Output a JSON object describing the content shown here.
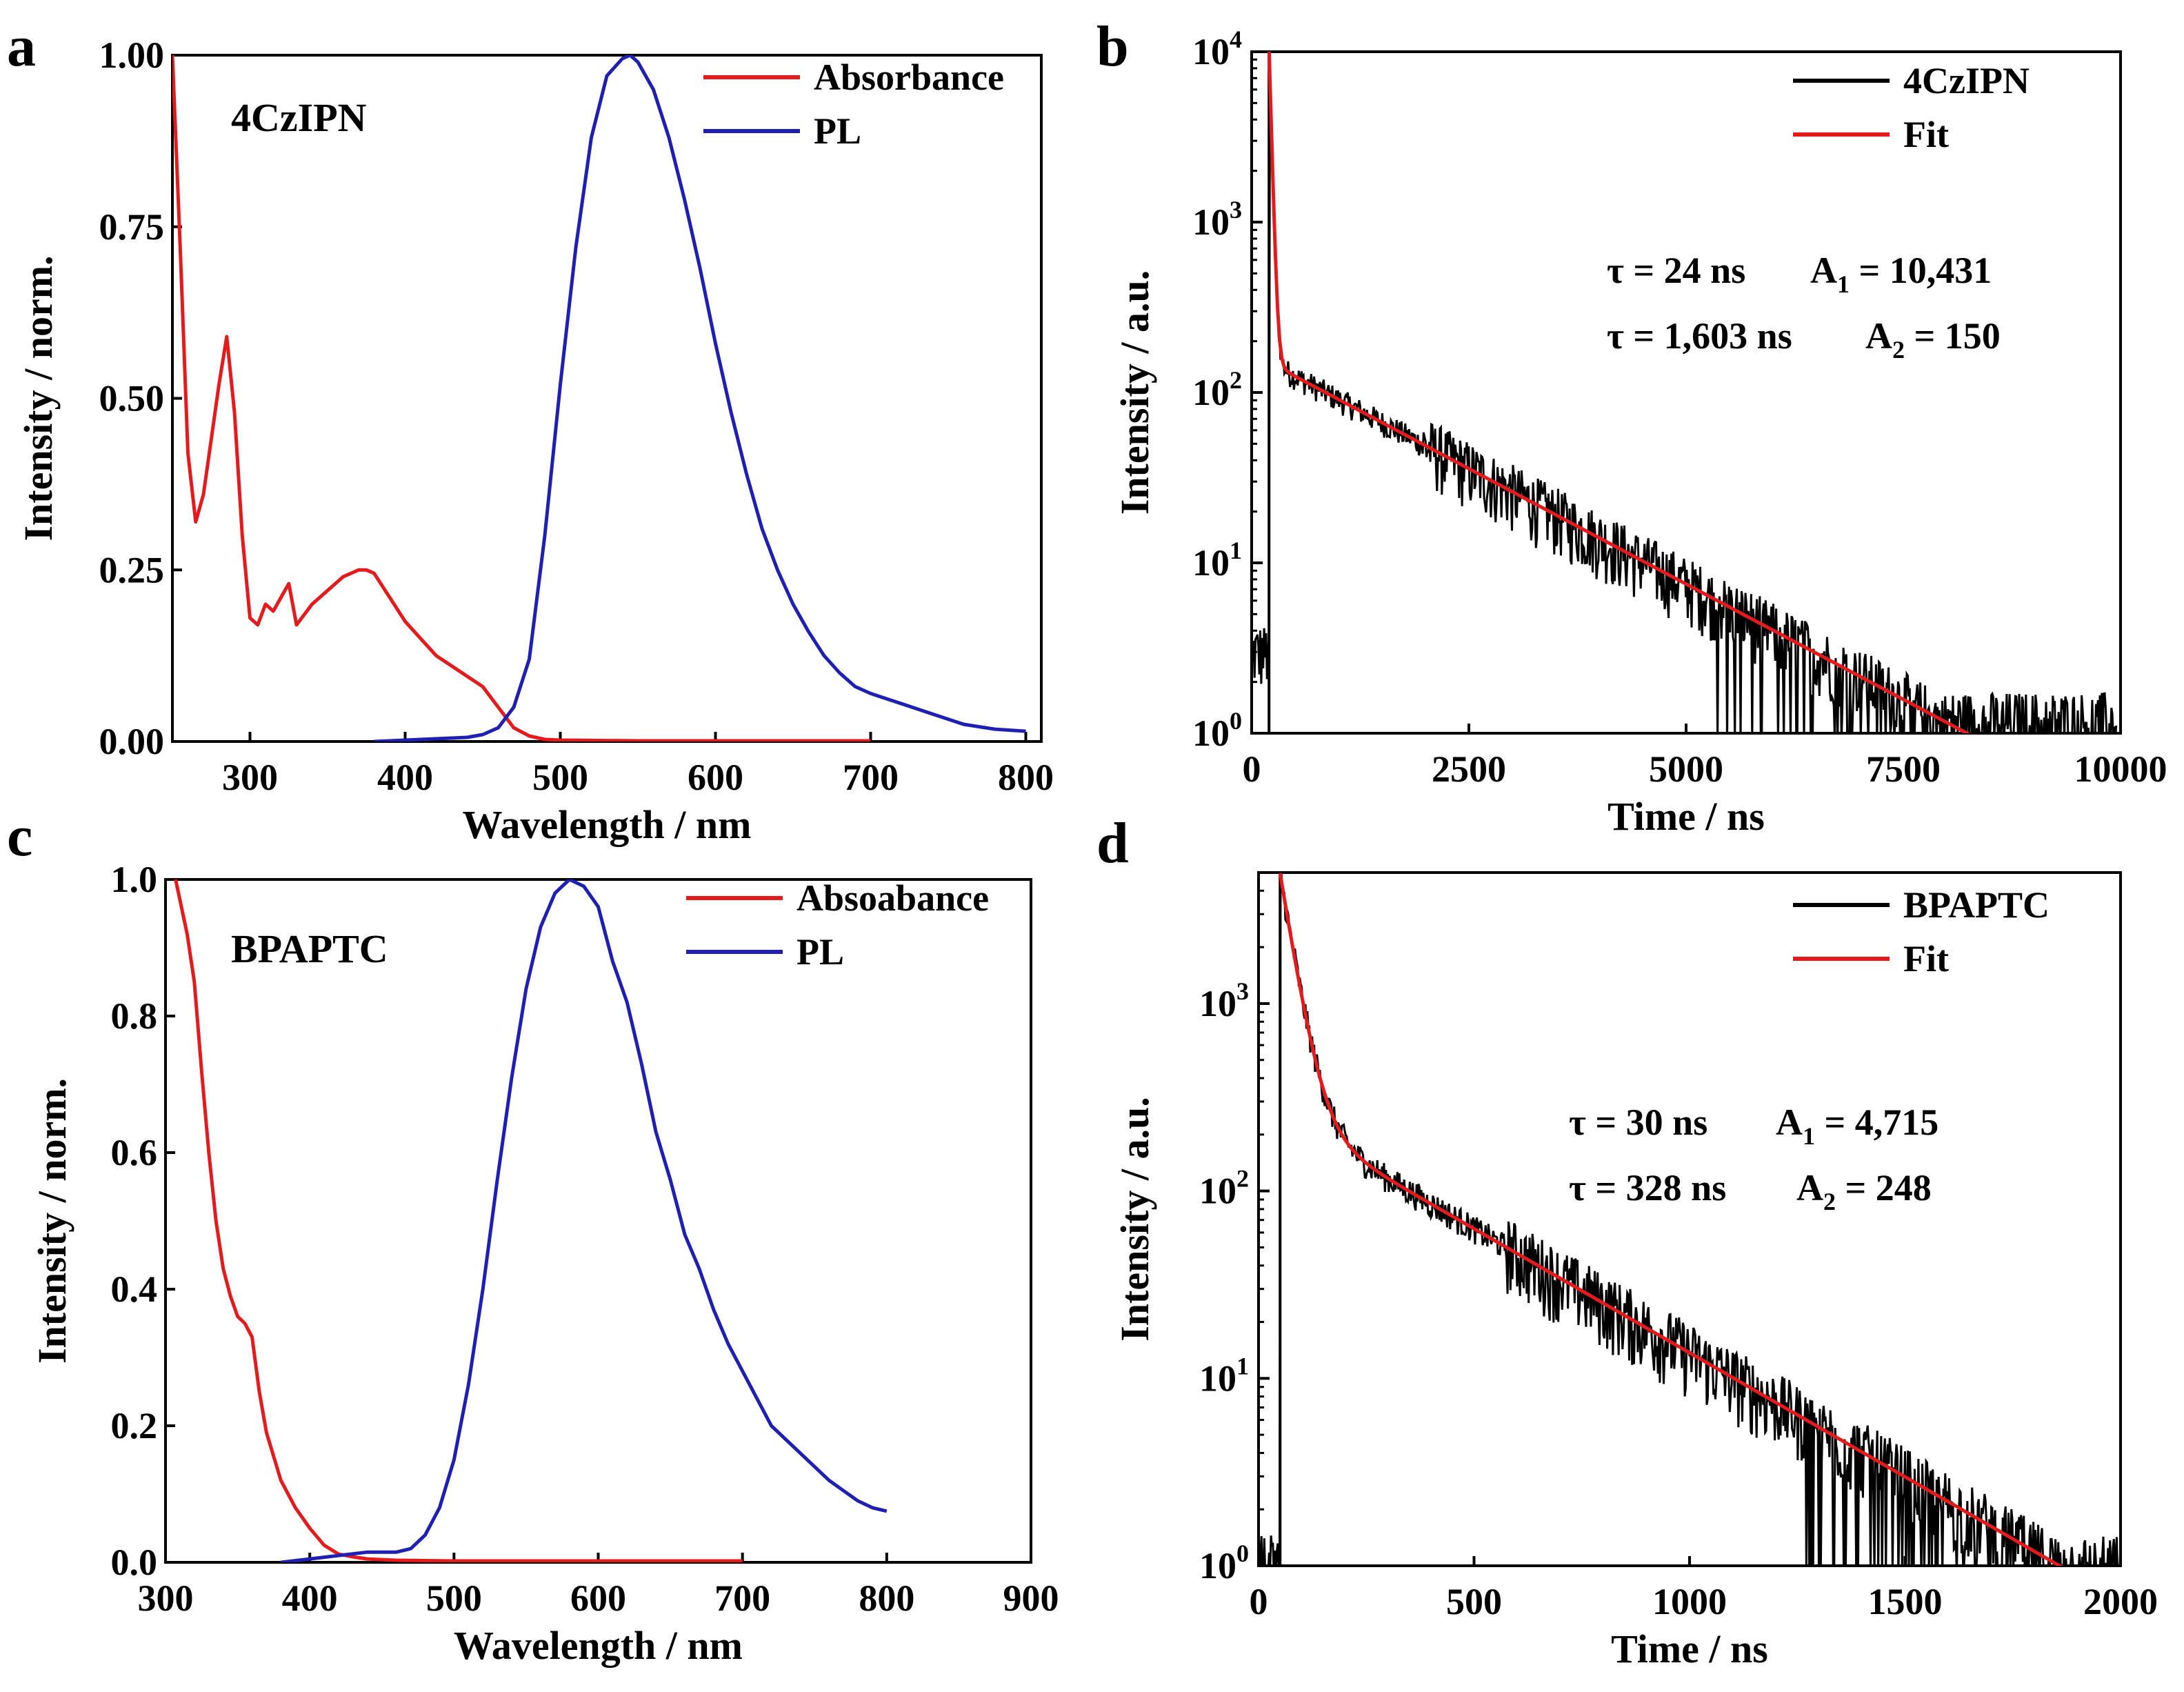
{
  "chart_data": [
    {
      "panel": "a",
      "type": "line",
      "scale": "linear",
      "sample_label": "4CzIPN",
      "xlabel": "Wavelength / nm",
      "ylabel": "Intensity / norm.",
      "xlim": [
        250,
        810
      ],
      "ylim": [
        0,
        1.0
      ],
      "xticks": [
        300,
        400,
        500,
        600,
        700,
        800
      ],
      "yticks": [
        0.0,
        0.25,
        0.5,
        0.75,
        1.0
      ],
      "ytick_labels": [
        "0.00",
        "0.25",
        "0.50",
        "0.75",
        "1.00"
      ],
      "legend": [
        "Absorbance",
        "PL"
      ],
      "series": [
        {
          "name": "Absorbance",
          "color": "#e41a1c",
          "x": [
            250,
            255,
            260,
            265,
            270,
            275,
            280,
            285,
            290,
            295,
            300,
            305,
            310,
            315,
            320,
            325,
            330,
            340,
            350,
            360,
            370,
            375,
            380,
            390,
            400,
            410,
            420,
            430,
            440,
            450,
            460,
            470,
            480,
            490,
            500,
            550,
            600,
            650,
            700
          ],
          "y": [
            1.0,
            0.72,
            0.42,
            0.32,
            0.36,
            0.44,
            0.52,
            0.59,
            0.48,
            0.3,
            0.18,
            0.17,
            0.2,
            0.19,
            0.21,
            0.23,
            0.17,
            0.2,
            0.22,
            0.24,
            0.25,
            0.25,
            0.245,
            0.21,
            0.175,
            0.15,
            0.125,
            0.11,
            0.095,
            0.08,
            0.05,
            0.02,
            0.008,
            0.003,
            0.002,
            0.001,
            0.001,
            0.001,
            0.001
          ]
        },
        {
          "name": "PL",
          "color": "#1f1fb4",
          "x": [
            380,
            400,
            420,
            440,
            450,
            460,
            470,
            480,
            490,
            500,
            510,
            520,
            530,
            540,
            545,
            550,
            560,
            570,
            580,
            590,
            600,
            610,
            620,
            630,
            640,
            650,
            660,
            670,
            680,
            690,
            700,
            720,
            740,
            760,
            780,
            800
          ],
          "y": [
            0.0,
            0.002,
            0.004,
            0.006,
            0.01,
            0.02,
            0.05,
            0.12,
            0.3,
            0.52,
            0.72,
            0.88,
            0.97,
            0.995,
            1.0,
            0.99,
            0.95,
            0.88,
            0.79,
            0.69,
            0.58,
            0.48,
            0.39,
            0.31,
            0.25,
            0.2,
            0.16,
            0.125,
            0.1,
            0.08,
            0.07,
            0.055,
            0.04,
            0.025,
            0.018,
            0.015
          ]
        }
      ]
    },
    {
      "panel": "b",
      "type": "line",
      "scale": "log-y",
      "xlabel": "Time / ns",
      "ylabel": "Intensity / a.u.",
      "xlim": [
        0,
        10000
      ],
      "ylim": [
        1,
        10000
      ],
      "xticks": [
        0,
        2500,
        5000,
        7500,
        10000
      ],
      "ytick_exponents": [
        0,
        1,
        2,
        3,
        4
      ],
      "legend": [
        "4CzIPN",
        "Fit"
      ],
      "annotations": [
        {
          "tau": "τ = 24 ns",
          "amp_sym": "A",
          "amp_sub": "1",
          "amp_val": "= 10,431"
        },
        {
          "tau": "τ = 1,603 ns",
          "amp_sym": "A",
          "amp_sub": "2",
          "amp_val": "= 150"
        }
      ],
      "decay": {
        "t0": 200,
        "x_end": 9950,
        "tau1": 24,
        "A1": 10431,
        "tau2": 1603,
        "A2": 150,
        "baseline": 1.2,
        "pre_level": 3
      },
      "series": [
        {
          "name": "4CzIPN",
          "color": "#000000"
        },
        {
          "name": "Fit",
          "color": "#e41a1c"
        }
      ]
    },
    {
      "panel": "c",
      "type": "line",
      "scale": "linear",
      "sample_label": "BPAPTC",
      "xlabel": "Wavelength / nm",
      "ylabel": "Intensity / norm.",
      "xlim": [
        300,
        900
      ],
      "ylim": [
        0,
        1.0
      ],
      "xticks": [
        300,
        400,
        500,
        600,
        700,
        800,
        900
      ],
      "yticks": [
        0.0,
        0.2,
        0.4,
        0.6,
        0.8,
        1.0
      ],
      "ytick_labels": [
        "0.0",
        "0.2",
        "0.4",
        "0.6",
        "0.8",
        "1.0"
      ],
      "legend": [
        "Absoabance",
        "PL"
      ],
      "series": [
        {
          "name": "Absoabance",
          "color": "#e41a1c",
          "x": [
            307,
            310,
            315,
            320,
            325,
            330,
            335,
            340,
            345,
            350,
            355,
            360,
            365,
            370,
            380,
            390,
            400,
            410,
            420,
            430,
            440,
            460,
            500,
            600,
            700
          ],
          "y": [
            1.0,
            0.97,
            0.92,
            0.85,
            0.72,
            0.6,
            0.5,
            0.43,
            0.39,
            0.36,
            0.35,
            0.33,
            0.25,
            0.19,
            0.12,
            0.08,
            0.05,
            0.025,
            0.012,
            0.008,
            0.005,
            0.003,
            0.002,
            0.002,
            0.002
          ]
        },
        {
          "name": "PL",
          "color": "#1f1fb4",
          "x": [
            380,
            400,
            420,
            440,
            460,
            470,
            480,
            490,
            500,
            510,
            520,
            530,
            540,
            550,
            560,
            570,
            580,
            590,
            600,
            610,
            620,
            630,
            640,
            650,
            660,
            670,
            680,
            690,
            700,
            710,
            720,
            730,
            740,
            750,
            760,
            770,
            780,
            790,
            800
          ],
          "y": [
            0.0,
            0.005,
            0.01,
            0.015,
            0.015,
            0.02,
            0.04,
            0.08,
            0.15,
            0.26,
            0.4,
            0.56,
            0.71,
            0.84,
            0.93,
            0.98,
            1.0,
            0.99,
            0.96,
            0.88,
            0.82,
            0.73,
            0.63,
            0.56,
            0.48,
            0.43,
            0.37,
            0.32,
            0.28,
            0.24,
            0.2,
            0.18,
            0.16,
            0.14,
            0.12,
            0.105,
            0.09,
            0.08,
            0.075
          ]
        }
      ]
    },
    {
      "panel": "d",
      "type": "line",
      "scale": "log-y",
      "xlabel": "Time / ns",
      "ylabel": "Intensity / a.u.",
      "xlim": [
        0,
        2000
      ],
      "ylim": [
        1,
        5000
      ],
      "xticks": [
        0,
        500,
        1000,
        1500,
        2000
      ],
      "ytick_exponents": [
        0,
        1,
        2,
        3
      ],
      "legend": [
        "BPAPTC",
        "Fit"
      ],
      "annotations": [
        {
          "tau": "τ = 30 ns",
          "amp_sym": "A",
          "amp_sub": "1",
          "amp_val": "= 4,715"
        },
        {
          "tau": "τ = 328 ns",
          "amp_sym": "A",
          "amp_sub": "2",
          "amp_val": "= 248"
        }
      ],
      "decay": {
        "t0": 50,
        "x_end": 2000,
        "tau1": 30,
        "A1": 4715,
        "tau2": 328,
        "A2": 248,
        "baseline": 1.0,
        "pre_level": 1
      },
      "series": [
        {
          "name": "BPAPTC",
          "color": "#000000"
        },
        {
          "name": "Fit",
          "color": "#e41a1c"
        }
      ]
    }
  ]
}
